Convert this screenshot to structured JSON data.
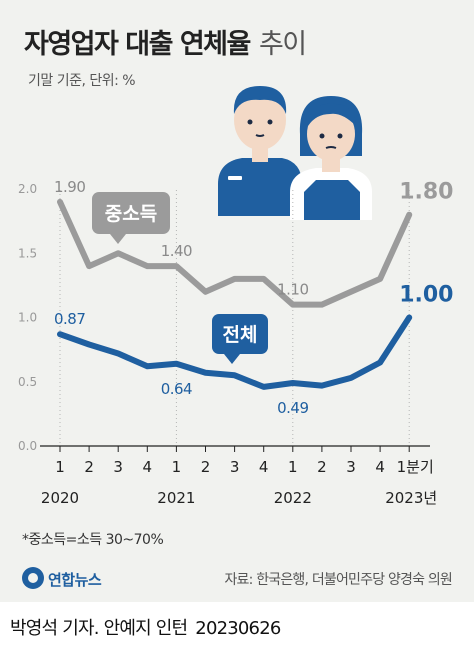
{
  "header": {
    "title": "자영업자 대출 연체율",
    "title_suffix": "추이",
    "subtitle": "기말 기준, 단위: %"
  },
  "chart_data": {
    "type": "line",
    "y_ticks": [
      "0.0",
      "0.5",
      "1.0",
      "1.5",
      "2.0"
    ],
    "ylim": [
      0,
      2.0
    ],
    "categories": [
      "1",
      "2",
      "3",
      "4",
      "1",
      "2",
      "3",
      "4",
      "1",
      "2",
      "3",
      "4",
      "1분기"
    ],
    "year_labels": [
      {
        "label": "2020",
        "index": 0
      },
      {
        "label": "2021",
        "index": 4
      },
      {
        "label": "2022",
        "index": 8
      },
      {
        "label": "2023년",
        "index": 12
      }
    ],
    "series": [
      {
        "name": "중소득",
        "color": "#9b9b9b",
        "values": [
          1.9,
          1.4,
          1.5,
          1.4,
          1.4,
          1.2,
          1.3,
          1.3,
          1.1,
          1.1,
          1.2,
          1.3,
          1.8
        ],
        "labels": [
          {
            "index": 0,
            "text": "1.90",
            "pos": "above"
          },
          {
            "index": 4,
            "text": "1.40",
            "pos": "above"
          },
          {
            "index": 8,
            "text": "1.10",
            "pos": "above"
          },
          {
            "index": 12,
            "text": "1.80",
            "pos": "end"
          }
        ]
      },
      {
        "name": "전체",
        "color": "#1f5fa0",
        "values": [
          0.87,
          0.79,
          0.72,
          0.62,
          0.64,
          0.57,
          0.55,
          0.46,
          0.49,
          0.47,
          0.53,
          0.65,
          1.0
        ],
        "labels": [
          {
            "index": 0,
            "text": "0.87",
            "pos": "above"
          },
          {
            "index": 4,
            "text": "0.64",
            "pos": "below"
          },
          {
            "index": 8,
            "text": "0.49",
            "pos": "below"
          },
          {
            "index": 12,
            "text": "1.00",
            "pos": "end"
          }
        ]
      }
    ],
    "grid": "vertical-dotted-at-year-starts"
  },
  "footnote": "*중소득=소득 30~70%",
  "agency": "연합뉴스",
  "source": "자료: 한국은행, 더불어민주당 양경숙 의원",
  "credit": {
    "byline": "박영석 기자. 안예지 인턴",
    "date": "20230626"
  },
  "colors": {
    "background": "#f1f2ef",
    "mid_income": "#9b9b9b",
    "total": "#1f5fa0"
  }
}
